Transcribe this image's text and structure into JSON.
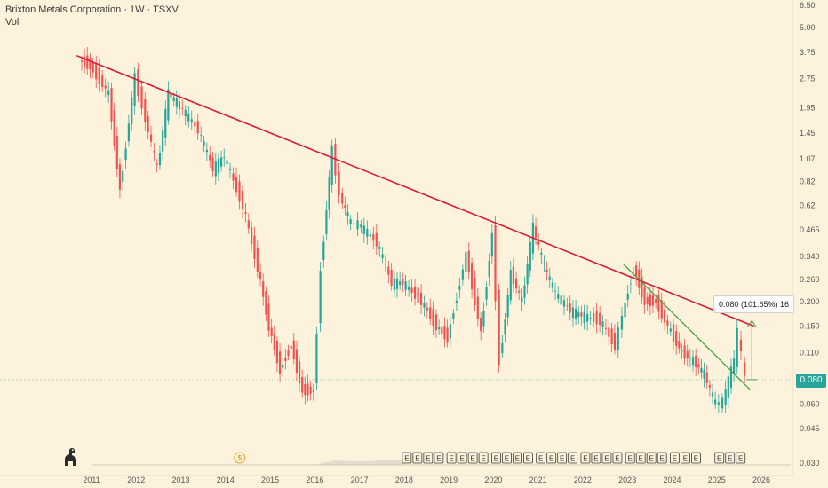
{
  "header": {
    "title": "Brixton Metals Corporation · 1W · TSXV",
    "volume_label": "Vol"
  },
  "price_tag": "0.080",
  "measure_label": "0.080 (101.65%) 16",
  "dividend_marker": "$",
  "earnings_marker": "E",
  "colors": {
    "background": "#fdf3dc",
    "up": "#26a69a",
    "down": "#ef5350",
    "resistance_line": "#d81b36",
    "breakout_line": "#43a047",
    "price_tag": "#26a69a",
    "axis_text": "#555555",
    "grid": "#eee3c8"
  },
  "icons": [
    "tradingview-logo-icon",
    "dividend-icon",
    "earnings-icon"
  ],
  "chart_data": {
    "type": "line",
    "title": "",
    "xlabel": "",
    "ylabel": "",
    "y_scale": "log",
    "grid": false,
    "x_ticks": [
      "2011",
      "2012",
      "2013",
      "2014",
      "2015",
      "2016",
      "2017",
      "2018",
      "2019",
      "2020",
      "2021",
      "2022",
      "2023",
      "2024",
      "2025",
      "2026"
    ],
    "y_ticks": [
      "6.50",
      "5.00",
      "3.75",
      "2.75",
      "1.95",
      "1.45",
      "1.07",
      "0.82",
      "0.62",
      "0.465",
      "0.340",
      "0.260",
      "0.200",
      "0.150",
      "0.110",
      "0.080",
      "0.060",
      "0.045",
      "0.030"
    ],
    "ylim": [
      0.03,
      6.5
    ],
    "current_price": 0.08,
    "series": [
      {
        "name": "",
        "x": [
          "2010-10",
          "2011-01",
          "2011-06",
          "2011-09",
          "2012-01",
          "2012-03",
          "2012-07",
          "2012-10",
          "2013-01",
          "2013-06",
          "2013-10",
          "2014-01",
          "2014-06",
          "2014-10",
          "2015-01",
          "2015-04",
          "2015-07",
          "2015-10",
          "2016-01",
          "2016-03",
          "2016-06",
          "2016-08",
          "2016-11",
          "2017-01",
          "2017-06",
          "2017-10",
          "2018-01",
          "2018-06",
          "2018-10",
          "2019-01",
          "2019-06",
          "2019-10",
          "2020-01",
          "2020-03",
          "2020-06",
          "2020-09",
          "2020-12",
          "2021-03",
          "2021-06",
          "2021-10",
          "2022-01",
          "2022-06",
          "2022-10",
          "2022-12",
          "2023-03",
          "2023-06",
          "2023-09",
          "2024-01",
          "2024-04",
          "2024-07",
          "2024-10",
          "2025-01",
          "2025-03",
          "2025-06",
          "2025-07",
          "2025-09"
        ],
        "y": [
          3.4,
          3.2,
          2.3,
          0.75,
          2.8,
          2.0,
          0.95,
          2.3,
          2.0,
          1.5,
          0.95,
          1.1,
          0.62,
          0.3,
          0.15,
          0.09,
          0.12,
          0.07,
          0.07,
          0.3,
          1.2,
          0.7,
          0.5,
          0.5,
          0.4,
          0.25,
          0.25,
          0.2,
          0.15,
          0.13,
          0.35,
          0.14,
          0.45,
          0.1,
          0.28,
          0.2,
          0.48,
          0.3,
          0.22,
          0.18,
          0.17,
          0.16,
          0.12,
          0.17,
          0.3,
          0.2,
          0.2,
          0.14,
          0.11,
          0.1,
          0.085,
          0.06,
          0.062,
          0.1,
          0.14,
          0.08
        ]
      }
    ],
    "trendlines": [
      {
        "name": "",
        "x": [
          "2010-09",
          "2025-11"
        ],
        "y": [
          3.6,
          0.15
        ]
      },
      {
        "name": "",
        "x": [
          "2022-12",
          "2025-10"
        ],
        "y": [
          0.31,
          0.071
        ]
      }
    ],
    "measure": {
      "from": 0.08,
      "to": 0.16,
      "label": "0.080 (101.65%) 16"
    },
    "earnings_groups": [
      {
        "x": "2018",
        "count": 4
      },
      {
        "x": "2019",
        "count": 4
      },
      {
        "x": "2020",
        "count": 4
      },
      {
        "x": "2021",
        "count": 4
      },
      {
        "x": "2022",
        "count": 4
      },
      {
        "x": "2023",
        "count": 4
      },
      {
        "x": "2024",
        "count": 3
      },
      {
        "x": "2025",
        "count": 3
      }
    ],
    "dividends": [
      {
        "x": "2014"
      }
    ]
  }
}
